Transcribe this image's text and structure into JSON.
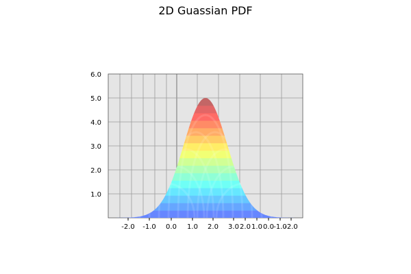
{
  "chart_data": {
    "type": "surface",
    "title": "2D Guassian PDF",
    "zlim": [
      0,
      6
    ],
    "z_ticks": [
      "1.0",
      "2.0",
      "3.0",
      "4.0",
      "5.0",
      "6.0"
    ],
    "x_ticks": [
      "-2.0",
      "-1.0",
      "0.0",
      "1.0",
      "2.0",
      "3.0"
    ],
    "y_ticks": [
      "2.0",
      "1.0",
      "0.0",
      "-1.0",
      "-2.0"
    ],
    "peak_z": 5.0,
    "grid": true,
    "colormap": "jet",
    "colors": {
      "pane": "#e5e5e5",
      "grid": "#9a9a9a"
    }
  }
}
